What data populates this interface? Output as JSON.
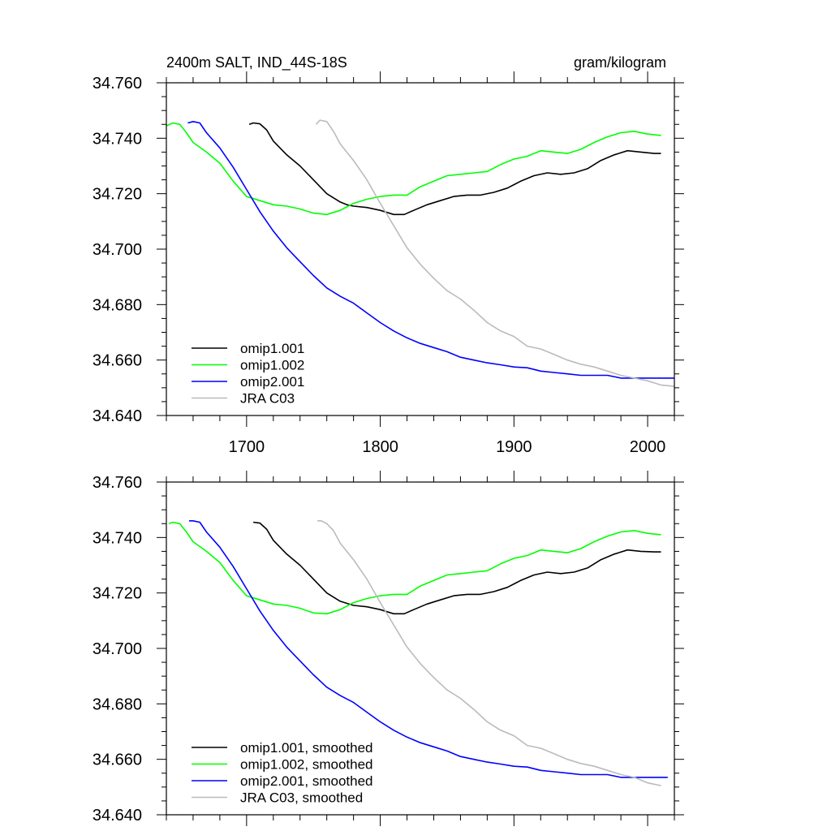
{
  "chart_data": [
    {
      "type": "line",
      "title": "2400m SALT, IND_44S-18S",
      "units": "gram/kilogram",
      "xlim": [
        1640,
        2020
      ],
      "ylim": [
        34.64,
        34.76
      ],
      "xticks": [
        1700,
        1800,
        1900,
        2000
      ],
      "yticks": [
        "34.640",
        "34.660",
        "34.680",
        "34.700",
        "34.720",
        "34.740",
        "34.760"
      ],
      "show_x_tick_labels": true,
      "grid": false,
      "legend_position": "bottom-left",
      "series": [
        {
          "name": "omip1.001",
          "color": "#000000",
          "x": [
            1702,
            1705,
            1710,
            1715,
            1720,
            1730,
            1740,
            1750,
            1760,
            1770,
            1775,
            1780,
            1790,
            1800,
            1810,
            1818,
            1825,
            1835,
            1845,
            1855,
            1865,
            1875,
            1885,
            1895,
            1905,
            1915,
            1925,
            1935,
            1945,
            1955,
            1965,
            1975,
            1985,
            1995,
            2005,
            2010
          ],
          "y": [
            34.745,
            34.7455,
            34.7452,
            34.743,
            34.739,
            34.734,
            34.73,
            34.725,
            34.72,
            34.717,
            34.716,
            34.7155,
            34.715,
            34.714,
            34.7125,
            34.7125,
            34.714,
            34.716,
            34.7175,
            34.719,
            34.7195,
            34.7195,
            34.7205,
            34.722,
            34.7245,
            34.7265,
            34.7275,
            34.727,
            34.7275,
            34.729,
            34.732,
            34.734,
            34.7355,
            34.735,
            34.7345,
            34.7345
          ]
        },
        {
          "name": "omip1.002",
          "color": "#00ff00",
          "x": [
            1640,
            1645,
            1650,
            1655,
            1660,
            1670,
            1680,
            1690,
            1700,
            1710,
            1720,
            1730,
            1740,
            1750,
            1760,
            1770,
            1780,
            1790,
            1800,
            1810,
            1820,
            1830,
            1840,
            1850,
            1860,
            1870,
            1880,
            1890,
            1900,
            1910,
            1920,
            1930,
            1940,
            1950,
            1960,
            1970,
            1980,
            1990,
            2000,
            2010
          ],
          "y": [
            34.7445,
            34.7455,
            34.745,
            34.742,
            34.7385,
            34.735,
            34.731,
            34.7245,
            34.719,
            34.7175,
            34.716,
            34.7155,
            34.7145,
            34.713,
            34.7125,
            34.714,
            34.7165,
            34.718,
            34.719,
            34.7195,
            34.7195,
            34.7225,
            34.7245,
            34.7265,
            34.727,
            34.7275,
            34.728,
            34.7305,
            34.7325,
            34.7335,
            34.7355,
            34.735,
            34.7345,
            34.736,
            34.7385,
            34.7405,
            34.742,
            34.7425,
            34.7415,
            34.741
          ]
        },
        {
          "name": "omip2.001",
          "color": "#0000ff",
          "x": [
            1656,
            1660,
            1665,
            1670,
            1680,
            1690,
            1700,
            1710,
            1720,
            1730,
            1740,
            1750,
            1760,
            1770,
            1780,
            1790,
            1800,
            1810,
            1820,
            1830,
            1840,
            1850,
            1860,
            1870,
            1880,
            1890,
            1900,
            1910,
            1920,
            1930,
            1940,
            1950,
            1960,
            1970,
            1980,
            1990,
            2000,
            2010,
            2020
          ],
          "y": [
            34.7455,
            34.746,
            34.7455,
            34.742,
            34.7365,
            34.7295,
            34.7215,
            34.7135,
            34.7065,
            34.7005,
            34.6955,
            34.6905,
            34.686,
            34.683,
            34.6805,
            34.677,
            34.6735,
            34.6705,
            34.668,
            34.666,
            34.6645,
            34.663,
            34.661,
            34.66,
            34.659,
            34.6583,
            34.6575,
            34.6572,
            34.656,
            34.6555,
            34.655,
            34.6545,
            34.6545,
            34.6545,
            34.6535,
            34.6535,
            34.6535,
            34.6535,
            34.6535
          ]
        },
        {
          "name": "JRA C03",
          "color": "#bbbbbb",
          "x": [
            1752,
            1755,
            1760,
            1765,
            1770,
            1780,
            1790,
            1800,
            1810,
            1820,
            1830,
            1840,
            1850,
            1860,
            1870,
            1880,
            1890,
            1900,
            1910,
            1920,
            1930,
            1940,
            1950,
            1960,
            1970,
            1980,
            1990,
            2000,
            2010,
            2020
          ],
          "y": [
            34.745,
            34.7465,
            34.746,
            34.7425,
            34.738,
            34.732,
            34.725,
            34.7165,
            34.7085,
            34.7005,
            34.6945,
            34.6895,
            34.685,
            34.682,
            34.678,
            34.6735,
            34.6705,
            34.6685,
            34.665,
            34.664,
            34.662,
            34.66,
            34.6585,
            34.6575,
            34.656,
            34.6545,
            34.6535,
            34.6525,
            34.651,
            34.6505
          ]
        }
      ]
    },
    {
      "type": "line",
      "title": "",
      "units": "",
      "xlim": [
        1640,
        2020
      ],
      "ylim": [
        34.64,
        34.76
      ],
      "xticks": [
        1700,
        1800,
        1900,
        2000
      ],
      "yticks": [
        "34.640",
        "34.660",
        "34.680",
        "34.700",
        "34.720",
        "34.740",
        "34.760"
      ],
      "show_x_tick_labels": false,
      "grid": false,
      "legend_position": "bottom-left",
      "series": [
        {
          "name": "omip1.001, smoothed",
          "color": "#000000",
          "x": [
            1705,
            1710,
            1715,
            1720,
            1730,
            1740,
            1750,
            1760,
            1770,
            1780,
            1790,
            1800,
            1810,
            1818,
            1825,
            1835,
            1845,
            1855,
            1865,
            1875,
            1885,
            1895,
            1905,
            1915,
            1925,
            1935,
            1945,
            1955,
            1965,
            1975,
            1985,
            1995,
            2005,
            2010
          ],
          "y": [
            34.7455,
            34.7452,
            34.743,
            34.739,
            34.734,
            34.73,
            34.725,
            34.72,
            34.717,
            34.7155,
            34.715,
            34.714,
            34.7125,
            34.7125,
            34.714,
            34.716,
            34.7175,
            34.719,
            34.7195,
            34.7195,
            34.7205,
            34.722,
            34.7245,
            34.7265,
            34.7275,
            34.727,
            34.7275,
            34.729,
            34.732,
            34.734,
            34.7355,
            34.735,
            34.7348,
            34.7348
          ]
        },
        {
          "name": "omip1.002, smoothed",
          "color": "#00ff00",
          "x": [
            1642,
            1645,
            1650,
            1655,
            1660,
            1670,
            1680,
            1690,
            1700,
            1710,
            1720,
            1730,
            1740,
            1750,
            1760,
            1770,
            1780,
            1790,
            1800,
            1810,
            1820,
            1830,
            1840,
            1850,
            1860,
            1870,
            1880,
            1890,
            1900,
            1910,
            1920,
            1930,
            1940,
            1950,
            1960,
            1970,
            1980,
            1990,
            2000,
            2010
          ],
          "y": [
            34.745,
            34.7455,
            34.745,
            34.742,
            34.7385,
            34.735,
            34.731,
            34.7245,
            34.719,
            34.7175,
            34.716,
            34.7155,
            34.7145,
            34.7128,
            34.7125,
            34.714,
            34.7165,
            34.718,
            34.719,
            34.7195,
            34.7195,
            34.7225,
            34.7245,
            34.7265,
            34.727,
            34.7275,
            34.728,
            34.7305,
            34.7325,
            34.7335,
            34.7355,
            34.735,
            34.7345,
            34.736,
            34.7385,
            34.7405,
            34.742,
            34.7425,
            34.7415,
            34.741
          ]
        },
        {
          "name": "omip2.001, smoothed",
          "color": "#0000ff",
          "x": [
            1657,
            1660,
            1665,
            1670,
            1680,
            1690,
            1700,
            1710,
            1720,
            1730,
            1740,
            1750,
            1760,
            1770,
            1780,
            1790,
            1800,
            1810,
            1820,
            1830,
            1840,
            1850,
            1860,
            1870,
            1880,
            1890,
            1900,
            1910,
            1920,
            1930,
            1940,
            1950,
            1960,
            1970,
            1980,
            1990,
            2000,
            2010,
            2015
          ],
          "y": [
            34.746,
            34.746,
            34.7455,
            34.742,
            34.7365,
            34.7295,
            34.7215,
            34.7135,
            34.7065,
            34.7005,
            34.6955,
            34.6905,
            34.686,
            34.683,
            34.6805,
            34.677,
            34.6735,
            34.6705,
            34.668,
            34.666,
            34.6645,
            34.663,
            34.661,
            34.66,
            34.659,
            34.6583,
            34.6575,
            34.6572,
            34.656,
            34.6555,
            34.655,
            34.6545,
            34.6545,
            34.6545,
            34.6535,
            34.6535,
            34.6535,
            34.6535,
            34.6535
          ]
        },
        {
          "name": "JRA C03, smoothed",
          "color": "#bbbbbb",
          "x": [
            1753,
            1756,
            1760,
            1765,
            1770,
            1780,
            1790,
            1800,
            1810,
            1820,
            1830,
            1840,
            1850,
            1860,
            1870,
            1880,
            1890,
            1900,
            1910,
            1920,
            1930,
            1940,
            1950,
            1960,
            1970,
            1980,
            1990,
            2000,
            2010
          ],
          "y": [
            34.746,
            34.746,
            34.745,
            34.7425,
            34.738,
            34.732,
            34.725,
            34.7165,
            34.7085,
            34.7005,
            34.6945,
            34.6895,
            34.685,
            34.682,
            34.678,
            34.6735,
            34.6705,
            34.6685,
            34.665,
            34.664,
            34.662,
            34.66,
            34.6585,
            34.6575,
            34.656,
            34.6545,
            34.6535,
            34.6515,
            34.6505
          ]
        }
      ]
    }
  ]
}
